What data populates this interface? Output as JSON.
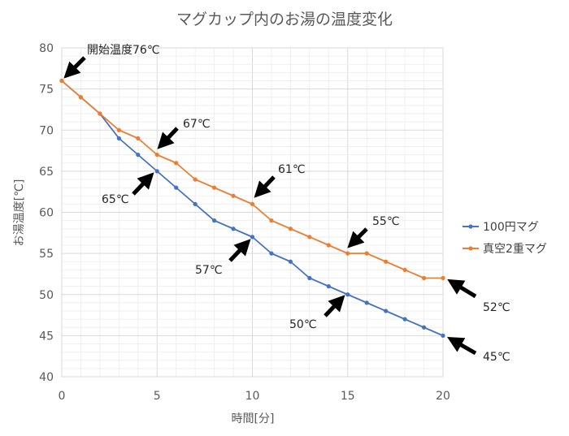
{
  "chart_data": {
    "type": "line",
    "title": "マグカップ内のお湯の温度変化",
    "xlabel": "時間[分]",
    "ylabel": "お湯温度[℃]",
    "xlim": [
      0,
      20
    ],
    "ylim": [
      40,
      80
    ],
    "xticks": [
      "0",
      "5",
      "10",
      "15",
      "20"
    ],
    "yticks": [
      "40",
      "45",
      "50",
      "55",
      "60",
      "65",
      "70",
      "75",
      "80"
    ],
    "grid": true,
    "legend_position": "right",
    "x": [
      0,
      1,
      2,
      3,
      4,
      5,
      6,
      7,
      8,
      9,
      10,
      11,
      12,
      13,
      14,
      15,
      16,
      17,
      18,
      19,
      20
    ],
    "series": [
      {
        "name": "100円マグ",
        "color": "#4472C4",
        "values": [
          76,
          74,
          72,
          69,
          67,
          65,
          63,
          61,
          59,
          58,
          57,
          55,
          54,
          52,
          51,
          50,
          49,
          48,
          47,
          46,
          45
        ]
      },
      {
        "name": "真空2重マグ",
        "color": "#ED7D31",
        "values": [
          76,
          74,
          72,
          70,
          69,
          67,
          66,
          64,
          63,
          62,
          61,
          59,
          58,
          57,
          56,
          55,
          55,
          54,
          53,
          52,
          52
        ]
      }
    ],
    "annotations": [
      {
        "text": "開始温度76℃",
        "x": 0,
        "y": 76
      },
      {
        "text": "67℃",
        "x": 5,
        "y": 67
      },
      {
        "text": "65℃",
        "x": 5,
        "y": 65
      },
      {
        "text": "61℃",
        "x": 10,
        "y": 61
      },
      {
        "text": "57℃",
        "x": 10,
        "y": 57
      },
      {
        "text": "55℃",
        "x": 15,
        "y": 55
      },
      {
        "text": "50℃",
        "x": 15,
        "y": 50
      },
      {
        "text": "52℃",
        "x": 20,
        "y": 52
      },
      {
        "text": "45℃",
        "x": 20,
        "y": 45
      }
    ]
  }
}
